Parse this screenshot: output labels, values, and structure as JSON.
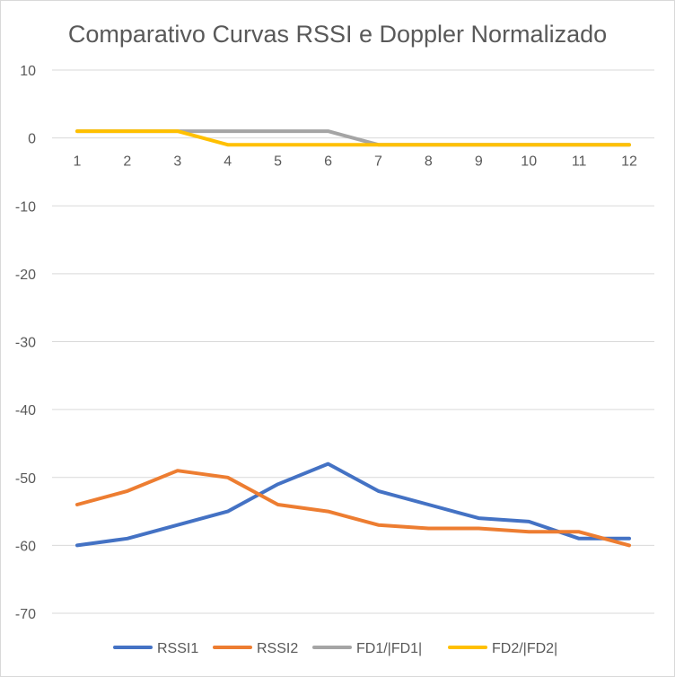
{
  "chart_data": {
    "type": "line",
    "title": "Comparativo Curvas RSSI e Doppler Normalizado",
    "xlabel": "",
    "ylabel": "",
    "categories": [
      "1",
      "2",
      "3",
      "4",
      "5",
      "6",
      "7",
      "8",
      "9",
      "10",
      "11",
      "12"
    ],
    "ylim": [
      -70,
      10
    ],
    "yticks": [
      10,
      0,
      -10,
      -20,
      -30,
      -40,
      -50,
      -60,
      -70
    ],
    "grid": true,
    "legend_position": "bottom",
    "series": [
      {
        "name": "RSSI1",
        "color": "#4472c4",
        "values": [
          -60,
          -59,
          -57,
          -55,
          -51,
          -48,
          -52,
          -54,
          -56,
          -56.5,
          -59,
          -59
        ]
      },
      {
        "name": "RSSI2",
        "color": "#ed7d31",
        "values": [
          -54,
          -52,
          -49,
          -50,
          -54,
          -55,
          -57,
          -57.5,
          -57.5,
          -58,
          -58,
          -60
        ]
      },
      {
        "name": "FD1/|FD1|",
        "color": "#a5a5a5",
        "values": [
          1,
          1,
          1,
          1,
          1,
          1,
          -1,
          -1,
          -1,
          -1,
          -1,
          -1
        ]
      },
      {
        "name": "FD2/|FD2|",
        "color": "#ffc000",
        "values": [
          1,
          1,
          1,
          -1,
          -1,
          -1,
          -1,
          -1,
          -1,
          -1,
          -1,
          -1
        ]
      }
    ]
  }
}
